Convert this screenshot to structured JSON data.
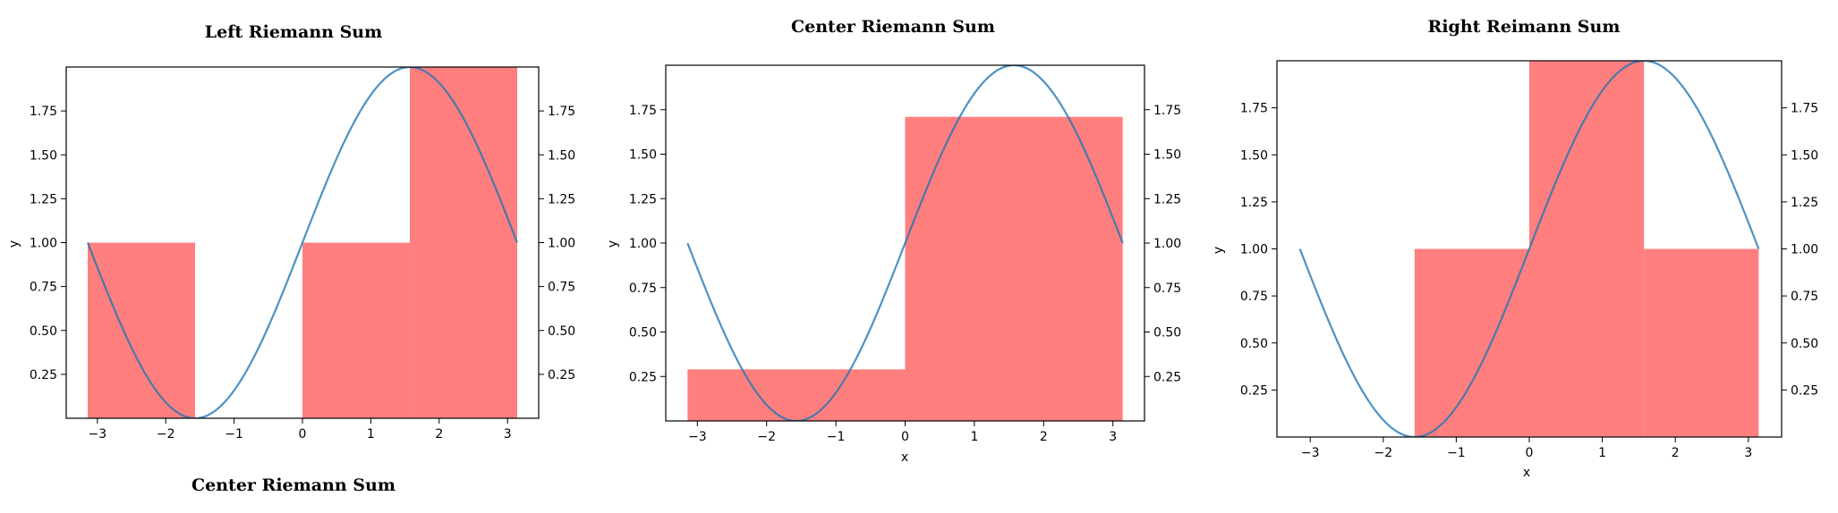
{
  "chart_data": [
    {
      "type": "bar",
      "title": "Left Riemann Sum",
      "footer_text": "Center Riemann Sum",
      "xlabel": "",
      "ylabel": "y",
      "function": "1 + sin(x)",
      "curve_x_range": [
        -3.14159,
        3.14159
      ],
      "xlim": [
        -3.456,
        3.456
      ],
      "ylim": [
        0,
        2.0
      ],
      "xticks": [
        -3,
        -2,
        -1,
        0,
        1,
        2,
        3
      ],
      "xtick_labels": [
        "−3",
        "−2",
        "−1",
        "0",
        "1",
        "2",
        "3"
      ],
      "yticks": [
        0.25,
        0.5,
        0.75,
        1.0,
        1.25,
        1.5,
        1.75
      ],
      "ytick_labels": [
        "0.25",
        "0.50",
        "0.75",
        "1.00",
        "1.25",
        "1.50",
        "1.75"
      ],
      "right_axis_ticks": true,
      "bars": [
        {
          "x0": -3.14159,
          "x1": -1.5708,
          "value": 1.0
        },
        {
          "x0": -1.5708,
          "x1": 0.0,
          "value": 0.0
        },
        {
          "x0": 0.0,
          "x1": 1.5708,
          "value": 1.0
        },
        {
          "x0": 1.5708,
          "x1": 3.14159,
          "value": 2.0
        }
      ],
      "bar_color": "#ff7f7f",
      "line_color": "#1f77b4",
      "grid": false
    },
    {
      "type": "bar",
      "title": "Center Riemann Sum",
      "xlabel": "x",
      "ylabel": "y",
      "function": "1 + sin(x)",
      "curve_x_range": [
        -3.14159,
        3.14159
      ],
      "xlim": [
        -3.456,
        3.456
      ],
      "ylim": [
        0,
        2.0
      ],
      "xticks": [
        -3,
        -2,
        -1,
        0,
        1,
        2,
        3
      ],
      "xtick_labels": [
        "−3",
        "−2",
        "−1",
        "0",
        "1",
        "2",
        "3"
      ],
      "yticks": [
        0.25,
        0.5,
        0.75,
        1.0,
        1.25,
        1.5,
        1.75
      ],
      "ytick_labels": [
        "0.25",
        "0.50",
        "0.75",
        "1.00",
        "1.25",
        "1.50",
        "1.75"
      ],
      "right_axis_ticks": true,
      "bars": [
        {
          "x0": -3.14159,
          "x1": 0.0,
          "value": 0.29
        },
        {
          "x0": 0.0,
          "x1": 3.14159,
          "value": 1.71
        }
      ],
      "bar_color": "#ff7f7f",
      "line_color": "#1f77b4",
      "grid": false
    },
    {
      "type": "bar",
      "title": "Right Reimann Sum",
      "xlabel": "x",
      "ylabel": "y",
      "function": "1 + sin(x)",
      "curve_x_range": [
        -3.14159,
        3.14159
      ],
      "xlim": [
        -3.456,
        3.456
      ],
      "ylim": [
        0,
        2.0
      ],
      "xticks": [
        -3,
        -2,
        -1,
        0,
        1,
        2,
        3
      ],
      "xtick_labels": [
        "−3",
        "−2",
        "−1",
        "0",
        "1",
        "2",
        "3"
      ],
      "yticks": [
        0.25,
        0.5,
        0.75,
        1.0,
        1.25,
        1.5,
        1.75
      ],
      "ytick_labels": [
        "0.25",
        "0.50",
        "0.75",
        "1.00",
        "1.25",
        "1.50",
        "1.75"
      ],
      "right_axis_ticks": true,
      "bars": [
        {
          "x0": -3.14159,
          "x1": -1.5708,
          "value": 0.0
        },
        {
          "x0": -1.5708,
          "x1": 0.0,
          "value": 1.0
        },
        {
          "x0": 0.0,
          "x1": 1.5708,
          "value": 2.0
        },
        {
          "x0": 1.5708,
          "x1": 3.14159,
          "value": 1.0
        }
      ],
      "bar_color": "#ff7f7f",
      "line_color": "#1f77b4",
      "grid": false
    }
  ]
}
